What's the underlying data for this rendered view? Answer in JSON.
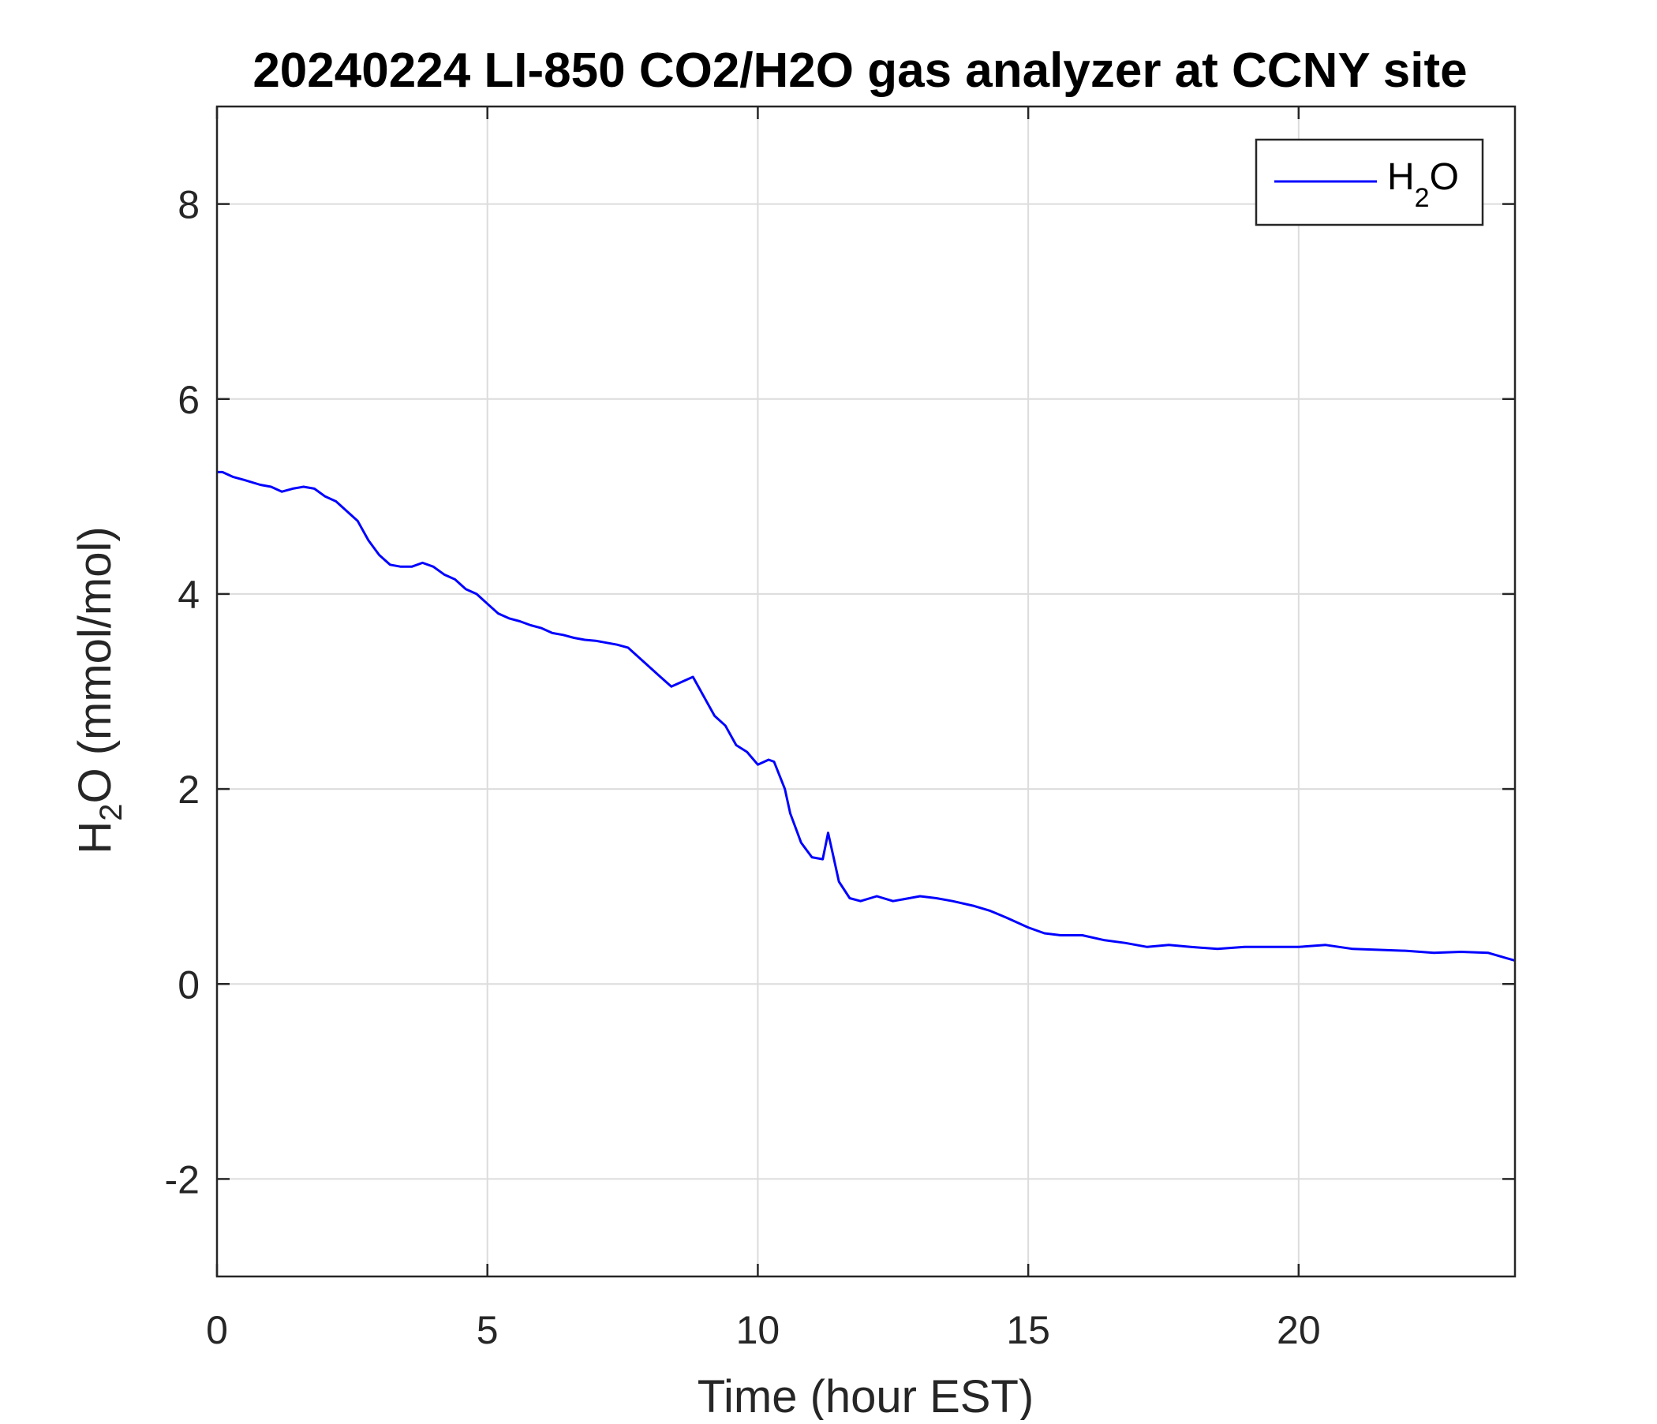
{
  "chart_data": {
    "type": "line",
    "title": "20240224 LI-850 CO2/H2O gas analyzer at CCNY site",
    "xlabel": "Time (hour EST)",
    "ylabel": {
      "main": "H",
      "sub": "2",
      "rest": "O (mmol/mol)"
    },
    "xlim": [
      0,
      24
    ],
    "ylim": [
      -3,
      9
    ],
    "xticks": [
      0,
      5,
      10,
      15,
      20
    ],
    "yticks": [
      -2,
      0,
      2,
      4,
      6,
      8
    ],
    "grid": true,
    "legend_position": "top-right",
    "series": [
      {
        "name": {
          "main": "H",
          "sub": "2",
          "rest": "O"
        },
        "color": "#0000ff",
        "x": [
          0,
          0.1,
          0.3,
          0.5,
          0.8,
          1.0,
          1.2,
          1.4,
          1.6,
          1.8,
          2.0,
          2.2,
          2.4,
          2.6,
          2.8,
          3.0,
          3.2,
          3.4,
          3.6,
          3.8,
          4.0,
          4.2,
          4.4,
          4.6,
          4.8,
          5.0,
          5.2,
          5.4,
          5.6,
          5.8,
          6.0,
          6.2,
          6.4,
          6.6,
          6.8,
          7.0,
          7.2,
          7.4,
          7.6,
          7.8,
          8.0,
          8.2,
          8.4,
          8.6,
          8.8,
          9.0,
          9.2,
          9.4,
          9.6,
          9.8,
          10.0,
          10.2,
          10.3,
          10.5,
          10.6,
          10.7,
          10.8,
          11.0,
          11.2,
          11.3,
          11.4,
          11.5,
          11.7,
          11.9,
          12.2,
          12.5,
          12.8,
          13.0,
          13.3,
          13.6,
          14.0,
          14.3,
          14.6,
          15.0,
          15.3,
          15.6,
          16.0,
          16.4,
          16.8,
          17.2,
          17.6,
          18.0,
          18.5,
          19.0,
          19.5,
          20.0,
          20.5,
          21.0,
          21.5,
          22.0,
          22.5,
          23.0,
          23.5,
          24.0
        ],
        "values": [
          5.25,
          5.25,
          5.2,
          5.17,
          5.12,
          5.1,
          5.05,
          5.08,
          5.1,
          5.08,
          5.0,
          4.95,
          4.85,
          4.75,
          4.55,
          4.4,
          4.3,
          4.28,
          4.28,
          4.32,
          4.28,
          4.2,
          4.15,
          4.05,
          4.0,
          3.9,
          3.8,
          3.75,
          3.72,
          3.68,
          3.65,
          3.6,
          3.58,
          3.55,
          3.53,
          3.52,
          3.5,
          3.48,
          3.45,
          3.35,
          3.25,
          3.15,
          3.05,
          3.1,
          3.15,
          2.95,
          2.75,
          2.65,
          2.45,
          2.38,
          2.25,
          2.3,
          2.28,
          2.0,
          1.75,
          1.6,
          1.45,
          1.3,
          1.28,
          1.55,
          1.3,
          1.05,
          0.88,
          0.85,
          0.9,
          0.85,
          0.88,
          0.9,
          0.88,
          0.85,
          0.8,
          0.75,
          0.68,
          0.58,
          0.52,
          0.5,
          0.5,
          0.45,
          0.42,
          0.38,
          0.4,
          0.38,
          0.36,
          0.38,
          0.38,
          0.38,
          0.4,
          0.36,
          0.35,
          0.34,
          0.32,
          0.33,
          0.32,
          0.24
        ]
      }
    ]
  }
}
